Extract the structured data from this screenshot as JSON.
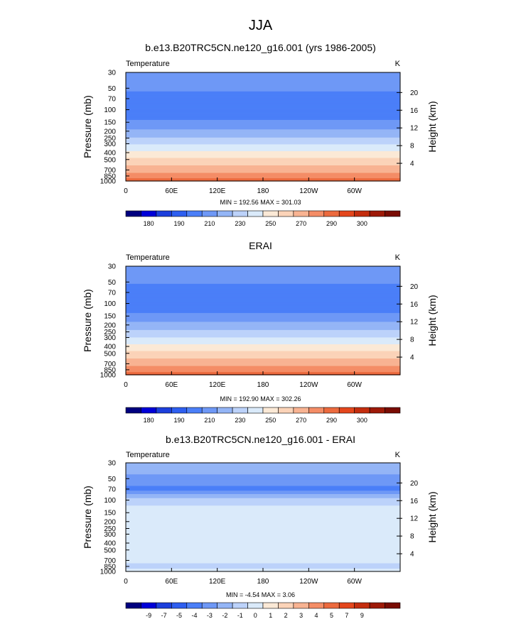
{
  "page_title": "JJA",
  "chart_data": [
    {
      "type": "heatmap",
      "title": "b.e13.B20TRC5CN.ne120_g16.001 (yrs 1986-2005)",
      "left_label": "Temperature",
      "right_label": "K",
      "ylabel": "Pressure (mb)",
      "y2label": "Height (km)",
      "xlabel": "",
      "x_ticks": [
        "0",
        "60E",
        "120E",
        "180",
        "120W",
        "60W"
      ],
      "x_tick_values": [
        0,
        60,
        120,
        180,
        240,
        300
      ],
      "xlim": [
        0,
        360
      ],
      "y_ticks": [
        "30",
        "50",
        "70",
        "100",
        "150",
        "200",
        "250",
        "300",
        "400",
        "500",
        "700",
        "850",
        "1000"
      ],
      "y_tick_values": [
        30,
        50,
        70,
        100,
        150,
        200,
        250,
        300,
        400,
        500,
        700,
        850,
        1000
      ],
      "ylim": [
        30,
        1000
      ],
      "y2_ticks": [
        "20",
        "16",
        "12",
        "8",
        "4"
      ],
      "y2_tick_values": [
        20,
        16,
        12,
        8,
        4
      ],
      "stats_text": "MIN = 192.56  MAX = 301.03",
      "min": 192.56,
      "max": 301.03,
      "colorbar_labels": [
        "180",
        "190",
        "210",
        "230",
        "250",
        "270",
        "290",
        "300"
      ],
      "colorbar_label_slots": [
        1,
        3,
        5,
        7,
        9,
        11,
        13,
        15
      ],
      "colorbar_colors": [
        "#00007f",
        "#0000d8",
        "#1c3fdc",
        "#2e5ff0",
        "#4b7ff8",
        "#6e98f6",
        "#94b5f6",
        "#bcd2fa",
        "#daeafa",
        "#fbe9d6",
        "#fbd3b8",
        "#f8b392",
        "#f48d66",
        "#ec6a3e",
        "#e4461c",
        "#c42d0e",
        "#9e1a08",
        "#790c03"
      ],
      "profile": [
        {
          "p": 30,
          "v": 219
        },
        {
          "p": 50,
          "v": 212
        },
        {
          "p": 70,
          "v": 205
        },
        {
          "p": 100,
          "v": 205
        },
        {
          "p": 130,
          "v": 208
        },
        {
          "p": 150,
          "v": 213
        },
        {
          "p": 200,
          "v": 222
        },
        {
          "p": 250,
          "v": 231
        },
        {
          "p": 300,
          "v": 239
        },
        {
          "p": 400,
          "v": 252
        },
        {
          "p": 500,
          "v": 262
        },
        {
          "p": 700,
          "v": 276
        },
        {
          "p": 850,
          "v": 285
        },
        {
          "p": 1000,
          "v": 295
        }
      ]
    },
    {
      "type": "heatmap",
      "title": "ERAI",
      "left_label": "Temperature",
      "right_label": "K",
      "ylabel": "Pressure (mb)",
      "y2label": "Height (km)",
      "xlabel": "",
      "x_ticks": [
        "0",
        "60E",
        "120E",
        "180",
        "120W",
        "60W"
      ],
      "x_tick_values": [
        0,
        60,
        120,
        180,
        240,
        300
      ],
      "xlim": [
        0,
        360
      ],
      "y_ticks": [
        "30",
        "50",
        "70",
        "100",
        "150",
        "200",
        "250",
        "300",
        "400",
        "500",
        "700",
        "850",
        "1000"
      ],
      "y_tick_values": [
        30,
        50,
        70,
        100,
        150,
        200,
        250,
        300,
        400,
        500,
        700,
        850,
        1000
      ],
      "ylim": [
        30,
        1000
      ],
      "y2_ticks": [
        "20",
        "16",
        "12",
        "8",
        "4"
      ],
      "y2_tick_values": [
        20,
        16,
        12,
        8,
        4
      ],
      "stats_text": "MIN = 192.90  MAX = 302.26",
      "min": 192.9,
      "max": 302.26,
      "colorbar_labels": [
        "180",
        "190",
        "210",
        "230",
        "250",
        "270",
        "290",
        "300"
      ],
      "colorbar_label_slots": [
        1,
        3,
        5,
        7,
        9,
        11,
        13,
        15
      ],
      "colorbar_colors": [
        "#00007f",
        "#0000d8",
        "#1c3fdc",
        "#2e5ff0",
        "#4b7ff8",
        "#6e98f6",
        "#94b5f6",
        "#bcd2fa",
        "#daeafa",
        "#fbe9d6",
        "#fbd3b8",
        "#f8b392",
        "#f48d66",
        "#ec6a3e",
        "#e4461c",
        "#c42d0e",
        "#9e1a08",
        "#790c03"
      ],
      "profile": [
        {
          "p": 30,
          "v": 218
        },
        {
          "p": 50,
          "v": 211
        },
        {
          "p": 70,
          "v": 206
        },
        {
          "p": 100,
          "v": 204
        },
        {
          "p": 130,
          "v": 208
        },
        {
          "p": 150,
          "v": 214
        },
        {
          "p": 200,
          "v": 223
        },
        {
          "p": 250,
          "v": 232
        },
        {
          "p": 300,
          "v": 240
        },
        {
          "p": 400,
          "v": 253
        },
        {
          "p": 500,
          "v": 263
        },
        {
          "p": 700,
          "v": 277
        },
        {
          "p": 850,
          "v": 286
        },
        {
          "p": 1000,
          "v": 296
        }
      ]
    },
    {
      "type": "heatmap",
      "title": "b.e13.B20TRC5CN.ne120_g16.001 - ERAI",
      "left_label": "Temperature",
      "right_label": "K",
      "ylabel": "Pressure (mb)",
      "y2label": "Height (km)",
      "xlabel": "",
      "x_ticks": [
        "0",
        "60E",
        "120E",
        "180",
        "120W",
        "60W"
      ],
      "x_tick_values": [
        0,
        60,
        120,
        180,
        240,
        300
      ],
      "xlim": [
        0,
        360
      ],
      "y_ticks": [
        "30",
        "50",
        "70",
        "100",
        "150",
        "200",
        "250",
        "300",
        "400",
        "500",
        "700",
        "850",
        "1000"
      ],
      "y_tick_values": [
        30,
        50,
        70,
        100,
        150,
        200,
        250,
        300,
        400,
        500,
        700,
        850,
        1000
      ],
      "ylim": [
        30,
        1000
      ],
      "y2_ticks": [
        "20",
        "16",
        "12",
        "8",
        "4"
      ],
      "y2_tick_values": [
        20,
        16,
        12,
        8,
        4
      ],
      "stats_text": "MIN = -4.54  MAX =  3.06",
      "min": -4.54,
      "max": 3.06,
      "colorbar_labels": [
        "-9",
        "-7",
        "-5",
        "-4",
        "-3",
        "-2",
        "-1",
        "0",
        "1",
        "2",
        "3",
        "4",
        "5",
        "7",
        "9"
      ],
      "colorbar_label_slots": [
        1,
        2,
        3,
        4,
        5,
        6,
        7,
        8,
        9,
        10,
        11,
        12,
        13,
        14,
        15
      ],
      "colorbar_colors": [
        "#00007f",
        "#0000d8",
        "#1c3fdc",
        "#2e5ff0",
        "#4b7ff8",
        "#6e98f6",
        "#94b5f6",
        "#bcd2fa",
        "#daeafa",
        "#fbe9d6",
        "#fbd3b8",
        "#f8b392",
        "#f48d66",
        "#ec6a3e",
        "#e4461c",
        "#c42d0e",
        "#9e1a08",
        "#790c03"
      ],
      "profile": [
        {
          "p": 30,
          "v": -1.5
        },
        {
          "p": 50,
          "v": -2.2
        },
        {
          "p": 70,
          "v": -3.4
        },
        {
          "p": 100,
          "v": -0.4
        },
        {
          "p": 150,
          "v": 0.5
        },
        {
          "p": 200,
          "v": 0.6
        },
        {
          "p": 300,
          "v": 0.5
        },
        {
          "p": 500,
          "v": 0.4
        },
        {
          "p": 700,
          "v": 0.3
        },
        {
          "p": 850,
          "v": -0.3
        },
        {
          "p": 1000,
          "v": 0.4
        }
      ]
    }
  ]
}
